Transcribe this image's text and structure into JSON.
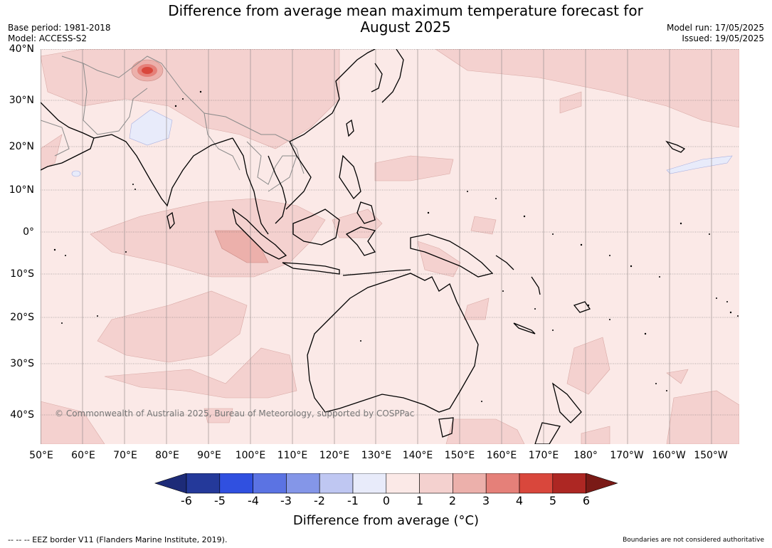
{
  "title_line1": "Difference from average mean maximum temperature forecast for",
  "title_line2": "August 2025",
  "base_period": "Base period: 1981-2018",
  "model": "Model: ACCESS-S2",
  "model_run": "Model run: 17/05/2025",
  "issued": "Issued: 19/05/2025",
  "copyright": "© Commonwealth of Australia 2025, Bureau of Meteorology, supported by COSPPac",
  "lat_labels": [
    "40°N",
    "30°N",
    "20°N",
    "10°N",
    "0°",
    "10°S",
    "20°S",
    "30°S",
    "40°S"
  ],
  "lon_labels": [
    "50°E",
    "60°E",
    "70°E",
    "80°E",
    "90°E",
    "100°E",
    "110°E",
    "120°E",
    "130°E",
    "140°E",
    "150°E",
    "160°E",
    "170°E",
    "180°",
    "170°W",
    "160°W",
    "150°W"
  ],
  "colorbar": {
    "ticks": [
      "-6",
      "-5",
      "-4",
      "-3",
      "-2",
      "-1",
      "0",
      "1",
      "2",
      "3",
      "4",
      "5",
      "6"
    ],
    "colors": [
      "#24399a",
      "#3050e0",
      "#5b73e3",
      "#8496e8",
      "#bfc7f2",
      "#e8ebfa",
      "#fbe9e7",
      "#f4d1cf",
      "#ecb0ab",
      "#e58079",
      "#d9473c",
      "#ad2723"
    ],
    "under_color": "#1d2b78",
    "over_color": "#7a1a16",
    "label": "Difference from average (°C)"
  },
  "footer_left": "--  --  -- EEZ border V11 (Flanders Marine Institute, 2019).",
  "footer_right": "Boundaries are not considered authoritative"
}
